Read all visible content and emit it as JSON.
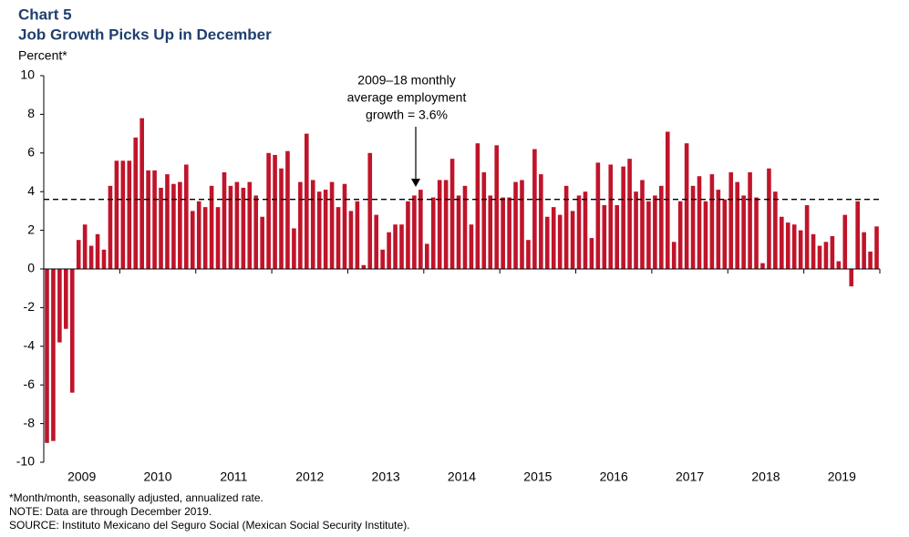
{
  "chart_data": {
    "type": "bar",
    "title": "Chart 5",
    "subtitle": "Job Growth Picks Up in December",
    "ylabel": "Percent*",
    "categories": [
      "2009",
      "2010",
      "2011",
      "2012",
      "2013",
      "2014",
      "2015",
      "2016",
      "2017",
      "2018",
      "2019"
    ],
    "values": [
      [
        -9.0,
        -8.9,
        -3.8,
        -3.1,
        -6.4,
        1.5,
        2.3,
        1.2,
        1.8,
        1.0,
        4.3,
        5.6
      ],
      [
        5.6,
        5.6,
        6.8,
        7.8,
        5.1,
        5.1,
        4.2,
        4.9,
        4.4,
        4.5,
        5.4,
        3.0
      ],
      [
        3.5,
        3.2,
        4.3,
        3.2,
        5.0,
        4.3,
        4.5,
        4.2,
        4.5,
        3.8,
        2.7,
        6.0
      ],
      [
        5.9,
        5.2,
        6.1,
        2.1,
        4.5,
        7.0,
        4.6,
        4.0,
        4.1,
        4.5,
        3.2,
        4.4
      ],
      [
        3.0,
        3.5,
        0.2,
        6.0,
        2.8,
        1.0,
        1.9,
        2.3,
        2.3,
        3.5,
        3.8,
        4.1
      ],
      [
        1.3,
        3.7,
        4.6,
        4.6,
        5.7,
        3.8,
        4.3,
        2.3,
        6.5,
        5.0,
        3.8,
        6.4
      ],
      [
        3.7,
        3.7,
        4.5,
        4.6,
        1.5,
        6.2,
        4.9,
        2.7,
        3.2,
        2.8,
        4.3,
        3.0
      ],
      [
        3.8,
        4.0,
        1.6,
        5.5,
        3.3,
        5.4,
        3.3,
        5.3,
        5.7,
        4.0,
        4.6,
        3.5
      ],
      [
        3.8,
        4.3,
        7.1,
        1.4,
        3.5,
        6.5,
        4.3,
        4.8,
        3.5,
        4.9,
        4.1,
        3.6
      ],
      [
        5.0,
        4.5,
        3.8,
        5.0,
        3.7,
        0.3,
        5.2,
        4.0,
        2.7,
        2.4,
        2.3,
        2.0
      ],
      [
        3.3,
        1.8,
        1.2,
        1.4,
        1.7,
        0.4,
        2.8,
        -0.9,
        3.5,
        1.9,
        0.9,
        2.2
      ]
    ],
    "color": "#c0142a",
    "average": 3.6,
    "annotation": [
      "2009–18 monthly",
      "average employment",
      "growth = 3.6%"
    ],
    "ylim": [
      -10,
      10
    ],
    "yticks": [
      10,
      8,
      6,
      4,
      2,
      0,
      -2,
      -4,
      -6,
      -8,
      -10
    ],
    "footnotes": [
      "*Month/month, seasonally adjusted, annualized rate.",
      "NOTE: Data are through December 2019.",
      "SOURCE: Instituto Mexicano del Seguro Social (Mexican Social Security Institute)."
    ]
  }
}
